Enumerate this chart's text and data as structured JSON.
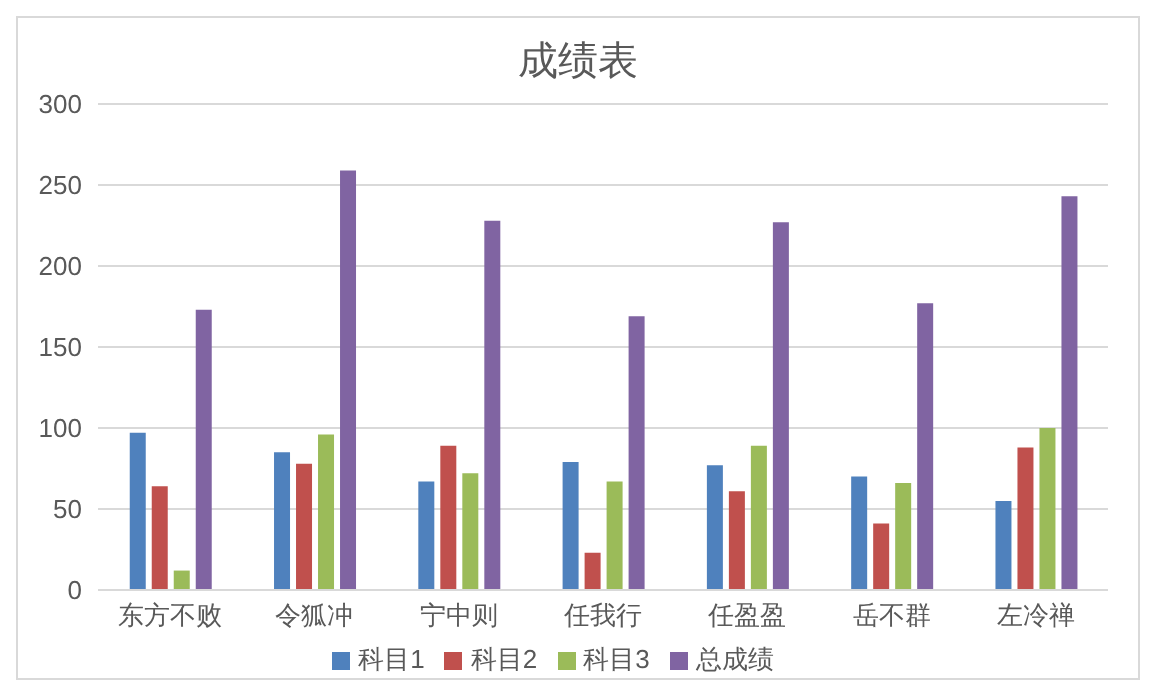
{
  "chart_data": {
    "type": "bar",
    "title": "成绩表",
    "categories": [
      "东方不败",
      "令狐冲",
      "宁中则",
      "任我行",
      "任盈盈",
      "岳不群",
      "左冷禅"
    ],
    "series": [
      {
        "name": "科目1",
        "color": "#4f81bd",
        "values": [
          97,
          85,
          67,
          79,
          77,
          70,
          55
        ]
      },
      {
        "name": "科目2",
        "color": "#c0504d",
        "values": [
          64,
          78,
          89,
          23,
          61,
          41,
          88
        ]
      },
      {
        "name": "科目3",
        "color": "#9bbb59",
        "values": [
          12,
          96,
          72,
          67,
          89,
          66,
          100
        ]
      },
      {
        "name": "总成绩",
        "color": "#8064a2",
        "values": [
          173,
          259,
          228,
          169,
          227,
          177,
          243
        ]
      }
    ],
    "ylim": [
      0,
      300
    ],
    "yticks": [
      0,
      50,
      100,
      150,
      200,
      250,
      300
    ],
    "grid": "y",
    "legend": "bottom"
  }
}
